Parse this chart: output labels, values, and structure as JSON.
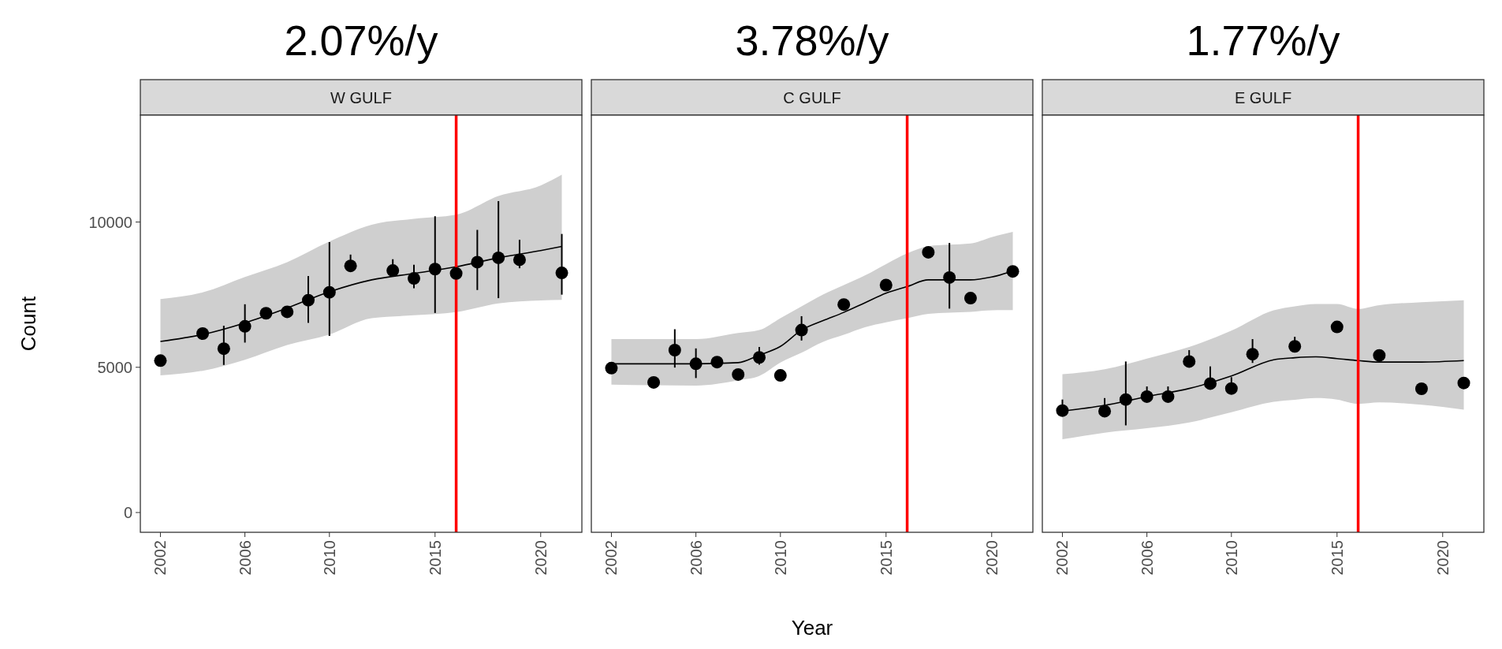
{
  "chart_data": [
    {
      "type": "scatter",
      "title": "2.07%/y",
      "subtitle": "W GULF",
      "ylabel": "Count",
      "xlim": [
        2001.05,
        2021.95
      ],
      "ylim": [
        -680,
        13680
      ],
      "xticks": [
        2002,
        2006,
        2010,
        2015,
        2020
      ],
      "yticks": [
        0,
        5000,
        10000
      ],
      "ref_lines": [
        {
          "axis": "x",
          "value": 2016,
          "color": "#ff0000"
        }
      ],
      "series": [
        {
          "type": "line",
          "color": "#000000",
          "x": [
            2002,
            2004,
            2006,
            2008,
            2010,
            2012,
            2014,
            2016,
            2018,
            2020,
            2021
          ],
          "values": [
            5890,
            6130,
            6530,
            7040,
            7600,
            8010,
            8230,
            8460,
            8770,
            9020,
            9160
          ],
          "lower": [
            4720,
            4880,
            5260,
            5770,
            6130,
            6690,
            6790,
            6900,
            7200,
            7300,
            7320
          ],
          "upper": [
            7350,
            7580,
            8110,
            8620,
            9330,
            9910,
            10110,
            10250,
            10900,
            11260,
            11630
          ]
        },
        {
          "marker": "circle",
          "color": "#000000",
          "x": [
            2002,
            2004,
            2005,
            2006,
            2007,
            2008,
            2009,
            2010,
            2011,
            2013,
            2014,
            2015,
            2016,
            2017,
            2018,
            2019,
            2021
          ],
          "values": [
            5230,
            6160,
            5640,
            6410,
            6860,
            6910,
            7310,
            7580,
            8490,
            8330,
            8060,
            8380,
            8230,
            8620,
            8770,
            8700,
            8250
          ],
          "errors": [
            null,
            null,
            [
              5080,
              6430
            ],
            [
              5850,
              7170
            ],
            null,
            null,
            [
              6530,
              8140
            ],
            [
              6080,
              9310
            ],
            [
              8300,
              8880
            ],
            [
              8150,
              8720
            ],
            [
              7720,
              8530
            ],
            [
              6870,
              10200
            ],
            null,
            [
              7660,
              9730
            ],
            [
              7380,
              10720
            ],
            [
              8410,
              9390
            ],
            [
              7500,
              9590
            ]
          ]
        }
      ]
    },
    {
      "type": "scatter",
      "title": "3.78%/y",
      "subtitle": "C GULF",
      "xlabel": "Year",
      "xlim": [
        2001.05,
        2021.95
      ],
      "ylim": [
        -680,
        13680
      ],
      "xticks": [
        2002,
        2006,
        2010,
        2015,
        2020
      ],
      "tick_labels": "x",
      "ref_lines": [
        {
          "axis": "x",
          "value": 2016,
          "color": "#ff0000"
        }
      ],
      "series": [
        {
          "type": "line",
          "color": "#000000",
          "x": [
            2002,
            2004,
            2006,
            2008,
            2009,
            2010,
            2011,
            2012,
            2013,
            2014,
            2015,
            2016,
            2017,
            2018,
            2019,
            2020,
            2021
          ],
          "values": [
            5120,
            5120,
            5120,
            5160,
            5420,
            5720,
            6280,
            6600,
            6890,
            7220,
            7550,
            7780,
            8010,
            8010,
            8010,
            8110,
            8310
          ],
          "lower": [
            4400,
            4380,
            4370,
            4550,
            4700,
            5160,
            5500,
            5870,
            6120,
            6380,
            6550,
            6690,
            6840,
            6880,
            6910,
            6960,
            6970
          ],
          "upper": [
            5970,
            5970,
            5970,
            6180,
            6280,
            6690,
            7100,
            7500,
            7830,
            8160,
            8550,
            8920,
            9170,
            9220,
            9260,
            9480,
            9660
          ]
        },
        {
          "marker": "circle",
          "color": "#000000",
          "x": [
            2002,
            2004,
            2005,
            2006,
            2007,
            2008,
            2009,
            2010,
            2011,
            2013,
            2015,
            2017,
            2018,
            2019,
            2021
          ],
          "values": [
            4970,
            4480,
            5590,
            5120,
            5180,
            4750,
            5340,
            4720,
            6280,
            7160,
            7830,
            8960,
            8090,
            7380,
            8300
          ],
          "errors": [
            null,
            null,
            [
              4990,
              6310
            ],
            [
              4630,
              5650
            ],
            null,
            null,
            [
              5090,
              5700
            ],
            null,
            [
              5920,
              6760
            ],
            null,
            null,
            null,
            [
              7020,
              9280
            ],
            null,
            null
          ]
        }
      ]
    },
    {
      "type": "scatter",
      "title": "1.77%/y",
      "subtitle": "E GULF",
      "xlim": [
        2001.05,
        2021.95
      ],
      "ylim": [
        -680,
        13680
      ],
      "xticks": [
        2002,
        2006,
        2010,
        2015,
        2020
      ],
      "tick_labels": "x",
      "ref_lines": [
        {
          "axis": "x",
          "value": 2016,
          "color": "#ff0000"
        }
      ],
      "series": [
        {
          "type": "line",
          "color": "#000000",
          "x": [
            2002,
            2004,
            2006,
            2008,
            2010,
            2012,
            2013,
            2014,
            2015,
            2016,
            2017,
            2019,
            2021
          ],
          "values": [
            3490,
            3690,
            3990,
            4270,
            4700,
            5260,
            5330,
            5360,
            5300,
            5230,
            5180,
            5180,
            5230
          ],
          "lower": [
            2520,
            2750,
            2900,
            3100,
            3450,
            3810,
            3880,
            3940,
            3890,
            3740,
            3790,
            3710,
            3540
          ],
          "upper": [
            4760,
            4930,
            5300,
            5700,
            6260,
            6960,
            7100,
            7180,
            7180,
            7010,
            7140,
            7240,
            7310
          ]
        },
        {
          "marker": "circle",
          "color": "#000000",
          "x": [
            2002,
            2004,
            2005,
            2006,
            2007,
            2008,
            2009,
            2010,
            2011,
            2013,
            2015,
            2017,
            2019,
            2021
          ],
          "values": [
            3510,
            3490,
            3890,
            3990,
            3990,
            5200,
            4440,
            4270,
            5450,
            5720,
            6390,
            5410,
            4260,
            4460
          ],
          "errors": [
            [
              3360,
              3890
            ],
            [
              3340,
              3940
            ],
            [
              3000,
              5200
            ],
            [
              3840,
              4340
            ],
            [
              3840,
              4340
            ],
            [
              5050,
              5590
            ],
            [
              4290,
              5030
            ],
            [
              4120,
              4660
            ],
            [
              5150,
              5970
            ],
            [
              5570,
              6050
            ],
            null,
            null,
            null,
            null
          ]
        }
      ]
    }
  ]
}
